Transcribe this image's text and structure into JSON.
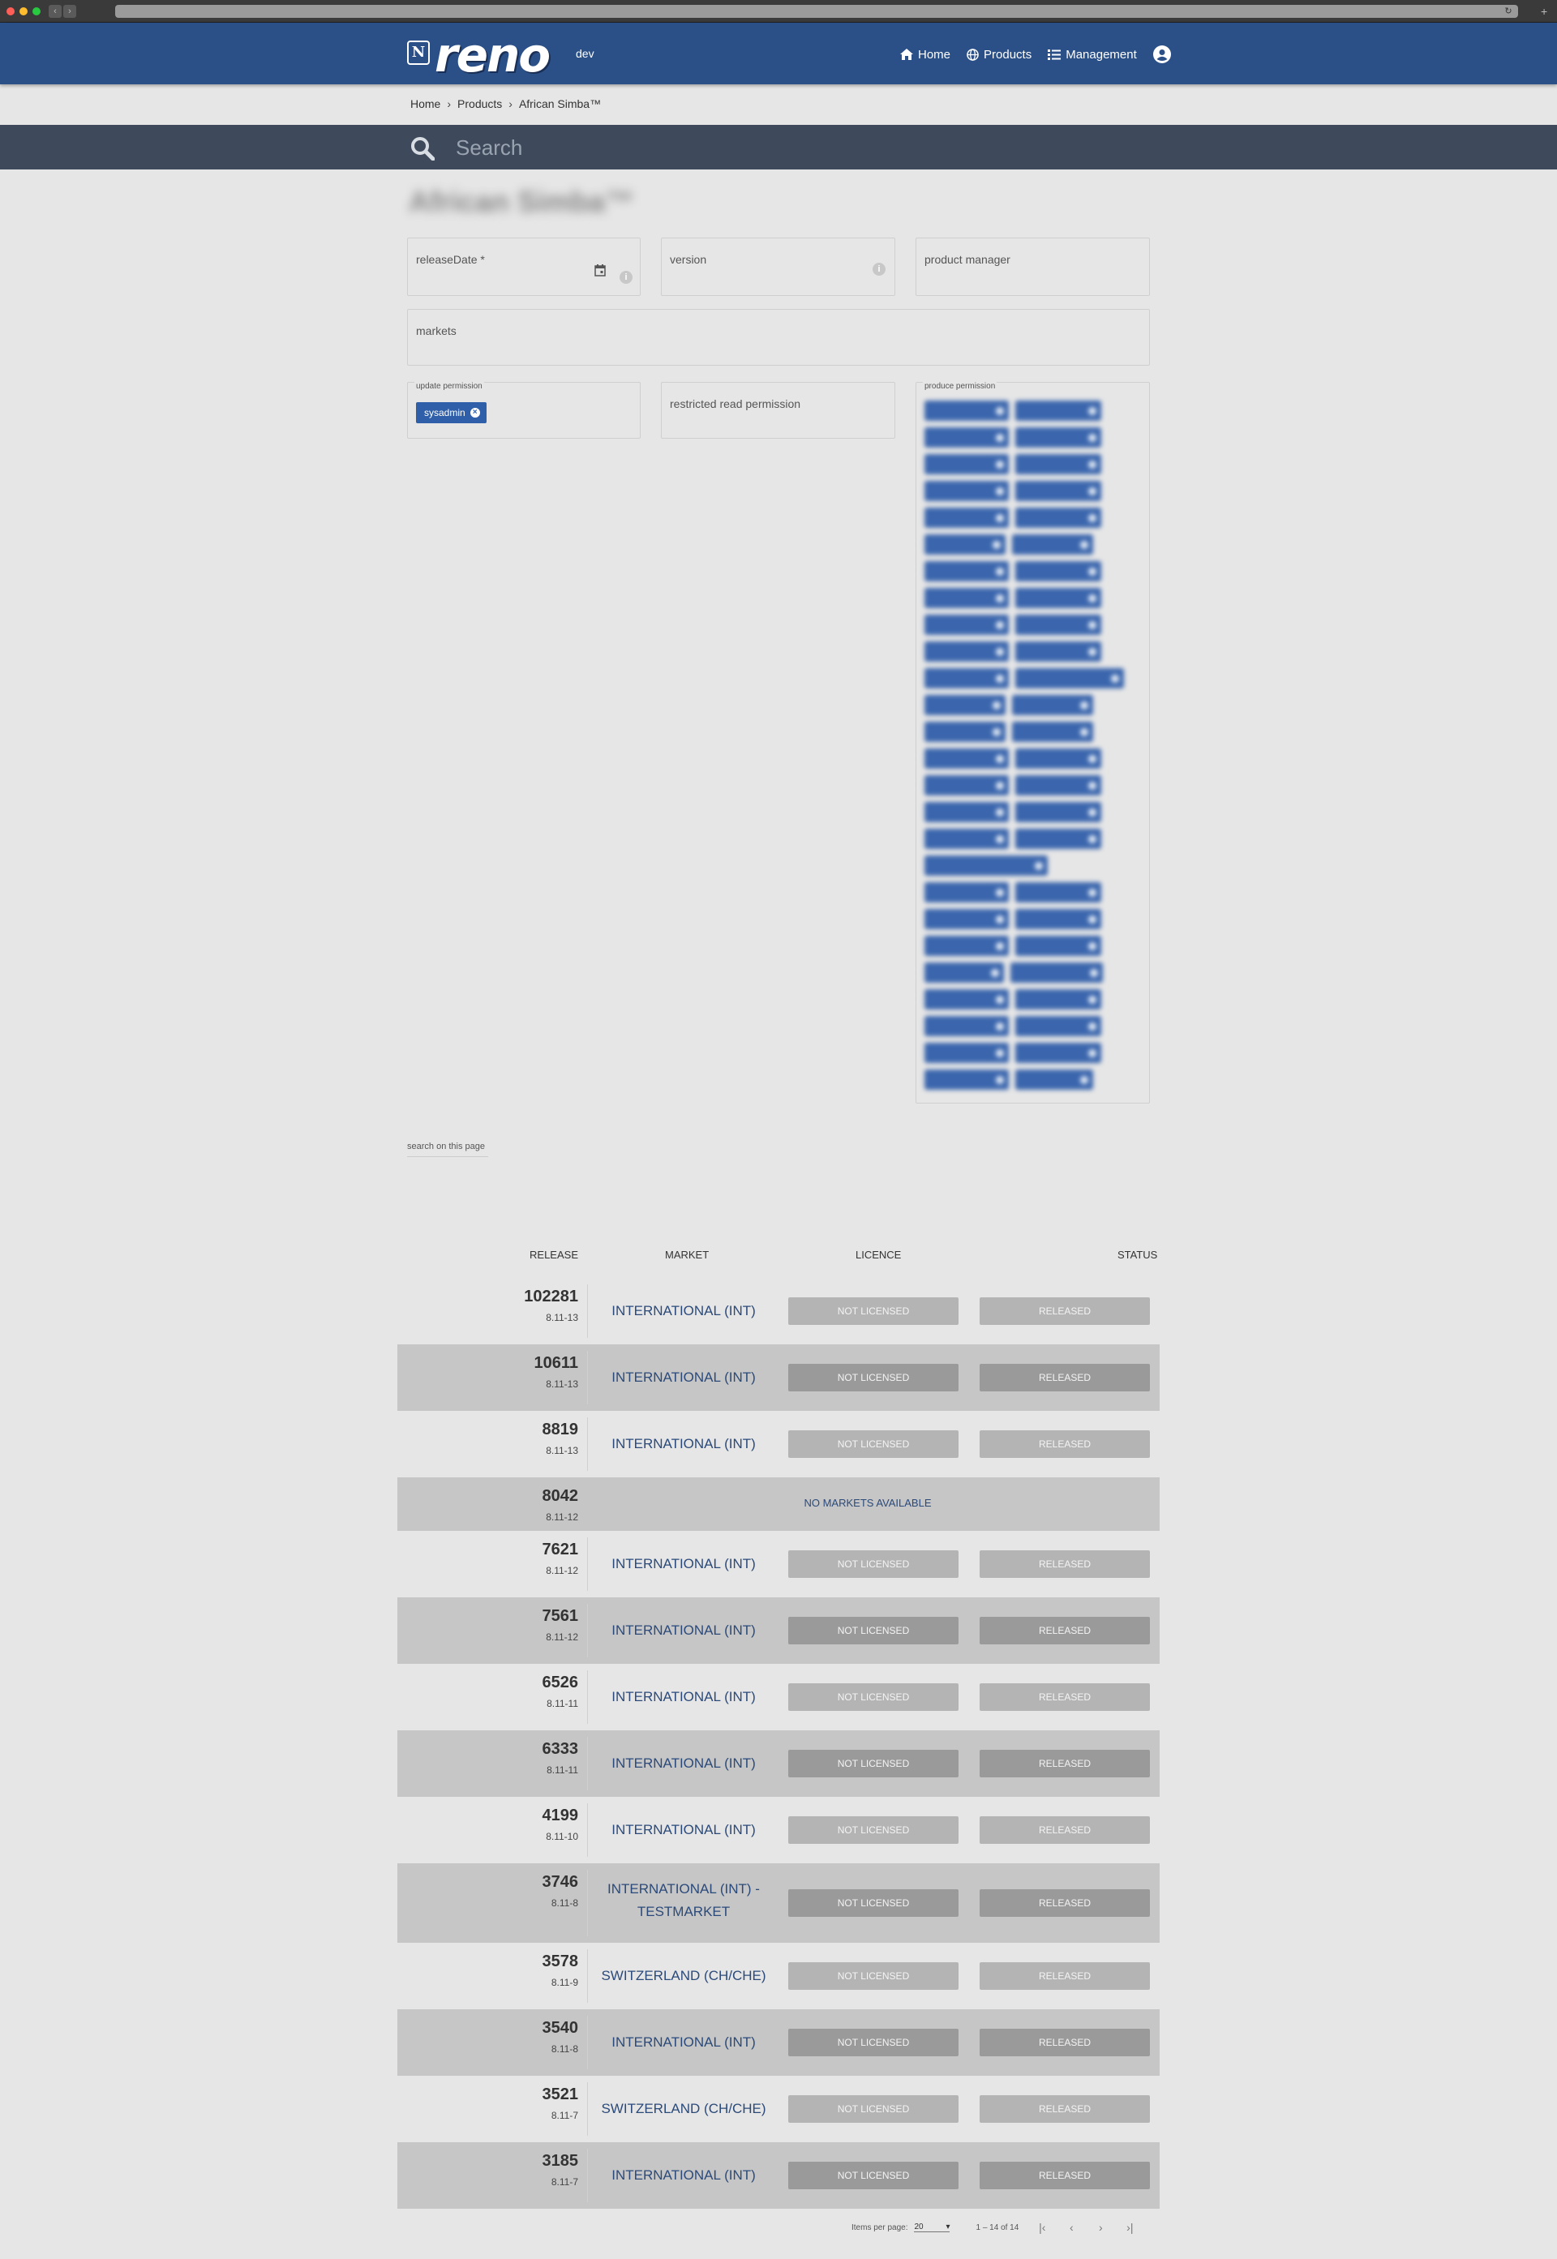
{
  "header": {
    "logo_letter": "N",
    "logo_text": "reno",
    "env_label": "dev",
    "nav": [
      {
        "label": "Home",
        "icon": "home-icon"
      },
      {
        "label": "Products",
        "icon": "globe-icon"
      },
      {
        "label": "Management",
        "icon": "list-icon"
      }
    ],
    "user_icon": "user-circle-icon"
  },
  "breadcrumb": [
    "Home",
    "Products",
    "African Simba™"
  ],
  "search": {
    "placeholder": "Search"
  },
  "form": {
    "title": "African Simba™",
    "fields": {
      "release_date": "releaseDate *",
      "version": "version",
      "product_manager": "product manager",
      "markets": "markets",
      "update_permission": "update permission",
      "restricted_read_permission": "restricted read permission",
      "produce_permission": "produce permission"
    },
    "update_permission_chips": [
      "sysadmin"
    ]
  },
  "table": {
    "search_on_page": "search on this page",
    "columns": [
      "RELEASE",
      "MARKET",
      "LICENCE",
      "STATUS"
    ],
    "rows": [
      {
        "release": "102281",
        "version": "8.11-13",
        "market": "INTERNATIONAL (INT)",
        "licence": "NOT LICENSED",
        "status": "RELEASED"
      },
      {
        "release": "10611",
        "version": "8.11-13",
        "market": "INTERNATIONAL (INT)",
        "licence": "NOT LICENSED",
        "status": "RELEASED"
      },
      {
        "release": "8819",
        "version": "8.11-13",
        "market": "INTERNATIONAL (INT)",
        "licence": "NOT LICENSED",
        "status": "RELEASED"
      },
      {
        "release": "8042",
        "version": "8.11-12",
        "market": "NO MARKETS AVAILABLE",
        "licence": "",
        "status": ""
      },
      {
        "release": "7621",
        "version": "8.11-12",
        "market": "INTERNATIONAL (INT)",
        "licence": "NOT LICENSED",
        "status": "RELEASED"
      },
      {
        "release": "7561",
        "version": "8.11-12",
        "market": "INTERNATIONAL (INT)",
        "licence": "NOT LICENSED",
        "status": "RELEASED"
      },
      {
        "release": "6526",
        "version": "8.11-11",
        "market": "INTERNATIONAL (INT)",
        "licence": "NOT LICENSED",
        "status": "RELEASED"
      },
      {
        "release": "6333",
        "version": "8.11-11",
        "market": "INTERNATIONAL (INT)",
        "licence": "NOT LICENSED",
        "status": "RELEASED"
      },
      {
        "release": "4199",
        "version": "8.11-10",
        "market": "INTERNATIONAL (INT)",
        "licence": "NOT LICENSED",
        "status": "RELEASED"
      },
      {
        "release": "3746",
        "version": "8.11-8",
        "market": "INTERNATIONAL (INT) - TESTMARKET",
        "licence": "NOT LICENSED",
        "status": "RELEASED"
      },
      {
        "release": "3578",
        "version": "8.11-9",
        "market": "SWITZERLAND (CH/CHE)",
        "licence": "NOT LICENSED",
        "status": "RELEASED"
      },
      {
        "release": "3540",
        "version": "8.11-8",
        "market": "INTERNATIONAL (INT)",
        "licence": "NOT LICENSED",
        "status": "RELEASED"
      },
      {
        "release": "3521",
        "version": "8.11-7",
        "market": "SWITZERLAND (CH/CHE)",
        "licence": "NOT LICENSED",
        "status": "RELEASED"
      },
      {
        "release": "3185",
        "version": "8.11-7",
        "market": "INTERNATIONAL (INT)",
        "licence": "NOT LICENSED",
        "status": "RELEASED"
      }
    ]
  },
  "paginator": {
    "items_per_page_label": "Items per page:",
    "items_per_page_value": "20",
    "range": "1 – 14 of 14"
  },
  "colors": {
    "header": "#2b5087",
    "search_bar": "#3e4a5c",
    "chip": "#2f5fa8",
    "market_text": "#2b4a7a"
  }
}
